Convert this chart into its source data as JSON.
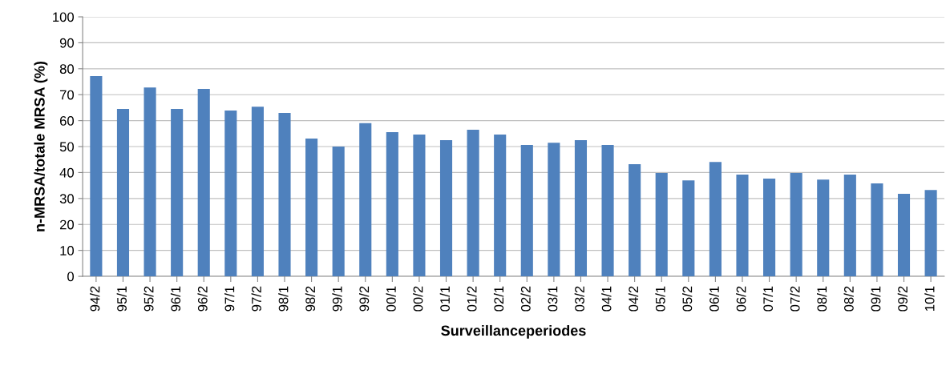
{
  "chart_data": {
    "type": "bar",
    "xlabel": "Surveillanceperiodes",
    "ylabel": "n-MRSA/totale MRSA (%)",
    "categories": [
      "94/2",
      "95/1",
      "95/2",
      "96/1",
      "96/2",
      "97/1",
      "97/2",
      "98/1",
      "98/2",
      "99/1",
      "99/2",
      "00/1",
      "00/2",
      "01/1",
      "01/2",
      "02/1",
      "02/2",
      "03/1",
      "03/2",
      "04/1",
      "04/2",
      "05/1",
      "05/2",
      "06/1",
      "06/2",
      "07/1",
      "07/2",
      "08/1",
      "08/2",
      "09/1",
      "09/2",
      "10/1"
    ],
    "values": [
      77.2,
      64.5,
      72.8,
      64.5,
      72.2,
      63.9,
      65.4,
      63.0,
      53.1,
      50.0,
      59.0,
      55.6,
      54.6,
      52.5,
      56.5,
      54.6,
      50.6,
      51.5,
      52.5,
      50.6,
      43.2,
      39.8,
      37.0,
      44.1,
      39.2,
      37.7,
      39.8,
      37.3,
      39.2,
      35.8,
      31.8,
      33.3
    ],
    "color": "#4f81bd",
    "ylim": [
      0,
      100
    ],
    "yticks": [
      0,
      10,
      20,
      30,
      40,
      50,
      60,
      70,
      80,
      90,
      100
    ],
    "grid": "y"
  }
}
